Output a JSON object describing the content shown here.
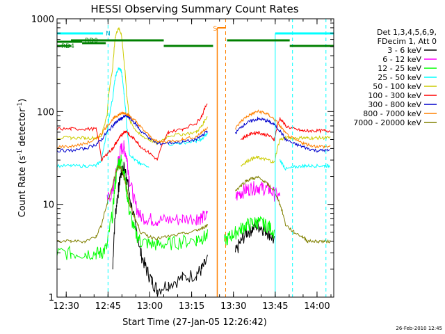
{
  "chart_data": {
    "type": "line",
    "title": "HESSI Observing Summary Count Rates",
    "xlabel": "Start Time (27-Jan-05 12:26:42)",
    "ylabel_main": "Count Rate (s",
    "ylabel_sup1": "-1",
    "ylabel_mid": " detector",
    "ylabel_sup2": "-1",
    "ylabel_end": ")",
    "y_scale": "log",
    "ylim": [
      1,
      1000
    ],
    "xlim_minutes": [
      0,
      99.3
    ],
    "x_ticks": [
      {
        "t": 3.3,
        "label": "12:30"
      },
      {
        "t": 18.3,
        "label": "12:45"
      },
      {
        "t": 33.3,
        "label": "13:00"
      },
      {
        "t": 48.3,
        "label": "13:15"
      },
      {
        "t": 63.3,
        "label": "13:30"
      },
      {
        "t": 78.3,
        "label": "13:45"
      },
      {
        "t": 93.3,
        "label": "14:00"
      }
    ],
    "y_ticks": [
      {
        "v": 1,
        "label": "1"
      },
      {
        "v": 10,
        "label": "10"
      },
      {
        "v": 100,
        "label": "100"
      },
      {
        "v": 1000,
        "label": "1000"
      }
    ],
    "legend_header": [
      "Det 1,3,4,5,6,9,",
      "FDecim 1, Att 0"
    ],
    "legend_position": "right",
    "series": [
      {
        "name": "3 - 6 keV",
        "color": "#000000",
        "x": [
          0,
          5,
          10,
          15,
          18,
          20,
          21,
          22,
          23,
          24,
          25,
          26,
          28,
          30,
          32,
          34,
          36,
          40,
          45,
          50,
          52,
          54,
          55,
          56,
          58,
          60,
          62,
          64,
          66,
          68,
          70,
          72,
          74,
          76,
          78,
          80,
          82,
          85,
          88,
          90,
          93,
          96,
          98
        ],
        "y": [
          null,
          null,
          null,
          null,
          null,
          2,
          8,
          14,
          22,
          25,
          20,
          12,
          6,
          3,
          2,
          1.5,
          1.2,
          1.4,
          1.6,
          1.8,
          2,
          2.5,
          null,
          null,
          null,
          null,
          null,
          3,
          4,
          5,
          5.5,
          6,
          5.5,
          5,
          4,
          null,
          null,
          null,
          null,
          null,
          null,
          null,
          null
        ]
      },
      {
        "name": "6 - 12 keV",
        "color": "#ff00ff",
        "x": [
          0,
          5,
          10,
          14,
          16,
          18,
          20,
          21,
          22,
          23,
          24,
          25,
          26,
          28,
          30,
          33,
          36,
          40,
          45,
          50,
          52,
          54,
          55,
          56,
          58,
          60,
          62,
          64,
          66,
          68,
          70,
          72,
          74,
          76,
          78,
          80,
          82,
          85,
          88,
          90,
          93,
          96,
          98
        ],
        "y": [
          null,
          null,
          null,
          null,
          null,
          11,
          14,
          20,
          30,
          40,
          42,
          32,
          18,
          10,
          7.5,
          7,
          6.8,
          6.8,
          7,
          7.2,
          7.3,
          7.5,
          null,
          null,
          null,
          null,
          null,
          12,
          13.5,
          14.5,
          15,
          15.5,
          15,
          14.5,
          13,
          12,
          null,
          null,
          null,
          null,
          null,
          null,
          null
        ]
      },
      {
        "name": "12 - 25 keV",
        "color": "#00ff00",
        "x": [
          0,
          5,
          10,
          14,
          16,
          18,
          20,
          21,
          22,
          23,
          24,
          25,
          26,
          28,
          30,
          33,
          36,
          40,
          45,
          50,
          52,
          54,
          55,
          56,
          58,
          60,
          62,
          64,
          66,
          68,
          70,
          72,
          74,
          76,
          78,
          80,
          82,
          85,
          88,
          90,
          93,
          96,
          98
        ],
        "y": [
          3,
          3,
          3,
          3,
          3,
          3.5,
          8,
          18,
          28,
          30,
          22,
          14,
          8,
          5,
          4,
          3.8,
          3.7,
          3.8,
          4,
          4.2,
          4.4,
          4.6,
          null,
          null,
          null,
          4,
          4.5,
          5,
          5.5,
          6,
          6.3,
          6.5,
          6.2,
          5.8,
          5,
          null,
          null,
          null,
          null,
          null,
          null,
          null,
          null
        ]
      },
      {
        "name": "25 - 50 keV",
        "color": "#00ffff",
        "x": [
          0,
          5,
          10,
          14,
          16,
          18,
          20,
          21,
          22,
          23,
          24,
          25,
          26,
          28,
          30,
          33,
          36,
          40,
          45,
          50,
          52,
          54,
          55,
          56,
          58,
          60,
          62,
          64,
          66,
          68,
          70,
          72,
          74,
          76,
          78,
          80,
          82,
          85,
          88,
          90,
          93,
          96,
          98
        ],
        "y": [
          26,
          26,
          26,
          26,
          30,
          60,
          140,
          240,
          290,
          280,
          160,
          70,
          35,
          30,
          27,
          26,
          null,
          44,
          46,
          48,
          50,
          58,
          null,
          null,
          null,
          null,
          null,
          null,
          null,
          null,
          null,
          null,
          null,
          null,
          null,
          30,
          24,
          25,
          26,
          26,
          26,
          26,
          26
        ]
      },
      {
        "name": "50 - 100 keV",
        "color": "#cccc00",
        "x": [
          0,
          5,
          10,
          14,
          16,
          18,
          20,
          21,
          22,
          23,
          24,
          25,
          26,
          28,
          30,
          33,
          36,
          40,
          45,
          50,
          52,
          54,
          55,
          56,
          58,
          60,
          62,
          64,
          66,
          68,
          70,
          72,
          74,
          76,
          78,
          80,
          82,
          85,
          88,
          90,
          93,
          96,
          98
        ],
        "y": [
          52,
          52,
          52,
          52,
          55,
          90,
          300,
          650,
          800,
          700,
          350,
          150,
          80,
          65,
          55,
          50,
          45,
          55,
          57,
          60,
          70,
          90,
          null,
          null,
          null,
          null,
          null,
          null,
          26,
          29,
          31,
          32,
          31,
          30,
          28,
          50,
          52,
          52,
          52,
          52,
          52,
          52,
          52
        ]
      },
      {
        "name": "100 - 300 keV",
        "color": "#ff0000",
        "x": [
          0,
          5,
          10,
          14,
          16,
          18,
          20,
          21,
          22,
          23,
          24,
          25,
          26,
          28,
          30,
          33,
          36,
          40,
          45,
          50,
          52,
          54,
          55,
          56,
          58,
          60,
          62,
          64,
          66,
          68,
          70,
          72,
          74,
          76,
          78,
          80,
          82,
          85,
          88,
          90,
          93,
          96,
          98
        ],
        "y": [
          65,
          65,
          65,
          65,
          30,
          35,
          40,
          45,
          50,
          55,
          60,
          62,
          55,
          50,
          42,
          36,
          30,
          60,
          65,
          75,
          90,
          125,
          null,
          null,
          null,
          null,
          null,
          null,
          50,
          55,
          58,
          60,
          57,
          55,
          50,
          85,
          70,
          65,
          62,
          62,
          62,
          62,
          62
        ]
      },
      {
        "name": "300 - 800 keV",
        "color": "#0000cc",
        "x": [
          0,
          5,
          10,
          14,
          16,
          18,
          20,
          21,
          22,
          23,
          24,
          25,
          26,
          28,
          30,
          33,
          36,
          40,
          45,
          50,
          52,
          54,
          55,
          56,
          58,
          60,
          62,
          64,
          66,
          68,
          70,
          72,
          74,
          76,
          78,
          80,
          82,
          85,
          88,
          90,
          93,
          96,
          98
        ],
        "y": [
          38,
          38,
          40,
          44,
          50,
          60,
          70,
          76,
          80,
          84,
          88,
          90,
          85,
          75,
          62,
          52,
          45,
          46,
          47,
          50,
          55,
          62,
          null,
          null,
          null,
          null,
          null,
          58,
          68,
          75,
          80,
          83,
          82,
          78,
          72,
          62,
          50,
          45,
          42,
          40,
          38,
          38,
          38
        ]
      },
      {
        "name": "800 - 7000 keV",
        "color": "#ff8000",
        "x": [
          0,
          5,
          10,
          14,
          16,
          18,
          20,
          21,
          22,
          23,
          24,
          25,
          26,
          28,
          30,
          33,
          36,
          40,
          45,
          50,
          52,
          54,
          55,
          56,
          58,
          60,
          62,
          64,
          66,
          68,
          70,
          72,
          74,
          76,
          78,
          80,
          82,
          85,
          88,
          90,
          93,
          96,
          98
        ],
        "y": [
          42,
          42,
          45,
          50,
          58,
          70,
          82,
          88,
          92,
          95,
          97,
          95,
          90,
          80,
          68,
          55,
          47,
          48,
          50,
          54,
          60,
          68,
          null,
          null,
          null,
          null,
          null,
          65,
          78,
          88,
          95,
          100,
          98,
          92,
          82,
          70,
          58,
          50,
          46,
          44,
          42,
          42,
          42
        ]
      },
      {
        "name": "7000 - 20000 keV",
        "color": "#808000",
        "x": [
          0,
          5,
          10,
          14,
          16,
          18,
          20,
          21,
          22,
          23,
          24,
          25,
          26,
          28,
          30,
          33,
          36,
          40,
          45,
          50,
          52,
          54,
          55,
          56,
          58,
          60,
          62,
          64,
          66,
          68,
          70,
          72,
          74,
          76,
          78,
          80,
          82,
          85,
          88,
          90,
          93,
          96,
          98
        ],
        "y": [
          4,
          4,
          4,
          4.5,
          6,
          10,
          16,
          22,
          26,
          24,
          20,
          15,
          10,
          7,
          5,
          4.5,
          4.3,
          4.5,
          4.8,
          5.2,
          5.5,
          6,
          null,
          null,
          null,
          null,
          null,
          14,
          16,
          18,
          19,
          19.5,
          18,
          16,
          14,
          10,
          6,
          5,
          4.5,
          4,
          4,
          4,
          4
        ]
      }
    ],
    "annotations": {
      "N_label": "N",
      "S_label": "S",
      "RD0_label": "RD0",
      "RD4_label": "RD4",
      "cyan_dashed_t": [
        18.3,
        84.5,
        96.5
      ],
      "orange_dashed_t": [
        60.5
      ],
      "orange_solid_t": [
        57.5
      ],
      "cyan_solid_t": [
        78.3
      ],
      "N_bars_t": [
        [
          0,
          16.5
        ],
        [
          78.3,
          99.3
        ]
      ],
      "S_bar_t": [
        [
          57.5,
          60.5
        ]
      ],
      "RD0_bars_t": [
        [
          0,
          9
        ],
        [
          9,
          17.5
        ]
      ],
      "RD4_bars_t": [
        [
          0,
          5
        ],
        [
          5,
          38.3
        ],
        [
          38.3,
          56
        ],
        [
          61,
          83.5
        ],
        [
          83.5,
          99.3
        ]
      ]
    },
    "footer_date": "26-Feb-2010 12:45"
  }
}
